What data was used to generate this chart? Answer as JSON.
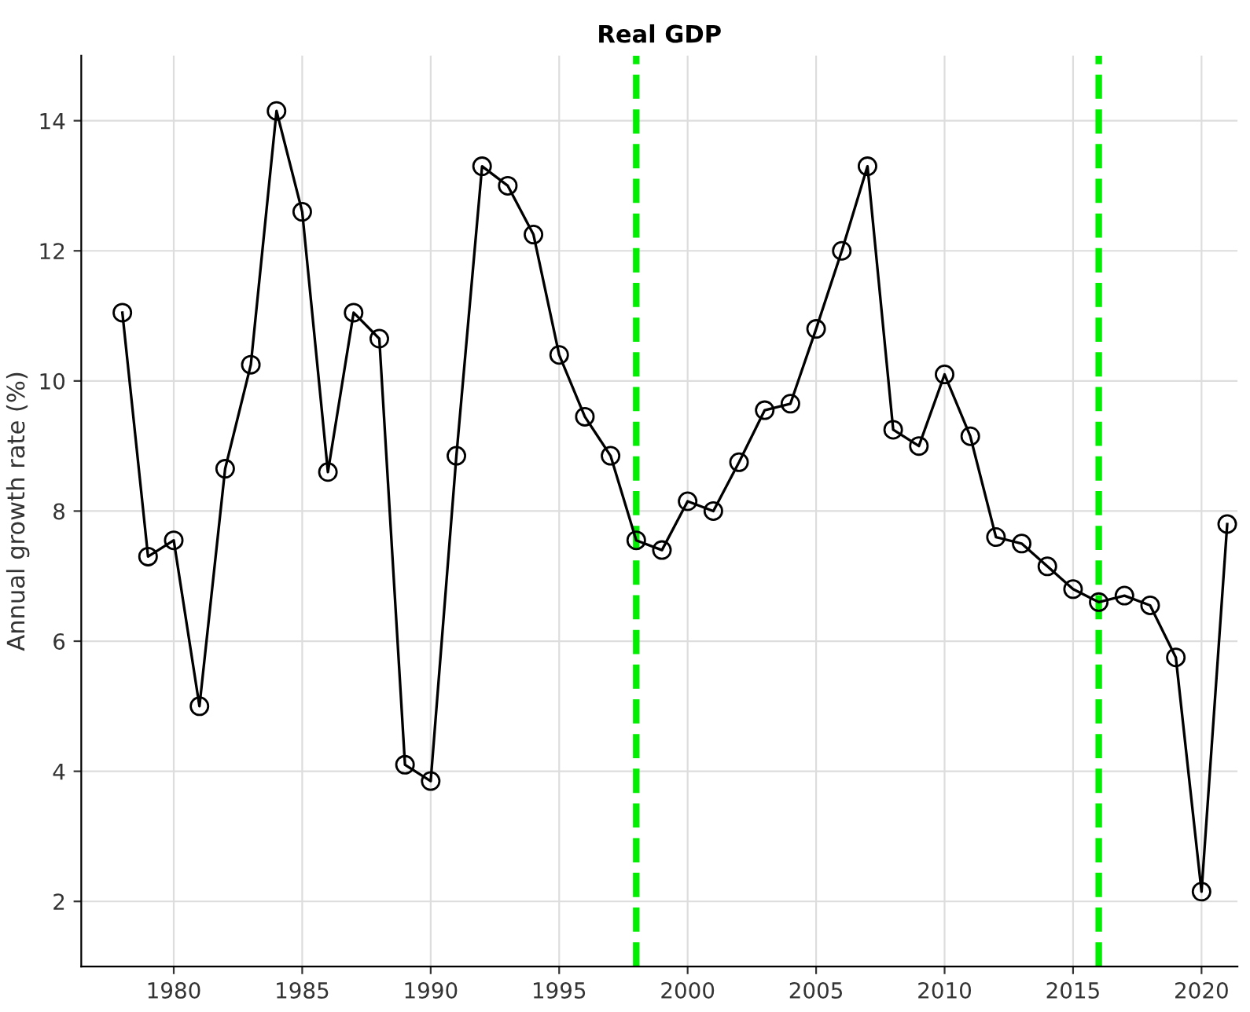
{
  "chart_data": {
    "type": "line",
    "title": "Real GDP",
    "ylabel": "Annual growth rate (%)",
    "x": [
      1978,
      1979,
      1980,
      1981,
      1982,
      1983,
      1984,
      1985,
      1986,
      1987,
      1988,
      1989,
      1990,
      1991,
      1992,
      1993,
      1994,
      1995,
      1996,
      1997,
      1998,
      1999,
      2000,
      2001,
      2002,
      2003,
      2004,
      2005,
      2006,
      2007,
      2008,
      2009,
      2010,
      2011,
      2012,
      2013,
      2014,
      2015,
      2016,
      2017,
      2018,
      2019,
      2020,
      2021
    ],
    "series": [
      {
        "color": "#000000",
        "values": [
          11.05,
          7.3,
          7.55,
          5.0,
          8.65,
          10.25,
          14.15,
          12.6,
          8.6,
          11.05,
          10.65,
          4.1,
          3.85,
          8.85,
          13.3,
          13.0,
          12.25,
          10.4,
          9.45,
          8.85,
          7.55,
          7.4,
          8.15,
          8.0,
          8.75,
          9.55,
          9.65,
          10.8,
          12.0,
          13.3,
          9.25,
          9.0,
          10.1,
          9.15,
          7.6,
          7.5,
          7.15,
          6.8,
          6.6,
          6.7,
          6.55,
          5.75,
          2.15,
          7.8
        ]
      }
    ],
    "xlim": [
      1976.4,
      2021.4
    ],
    "xticks": [
      1980,
      1985,
      1990,
      1995,
      2000,
      2005,
      2010,
      2015,
      2020
    ],
    "ylim": [
      1,
      15
    ],
    "yticks": [
      2,
      4,
      6,
      8,
      10,
      12,
      14
    ],
    "grid": true,
    "marker": "circle",
    "line_style": "solid",
    "legend": false,
    "ref_lines": [
      {
        "axis": "x",
        "value": 1998,
        "color": "#00ee00",
        "line_style": "dashed"
      },
      {
        "axis": "x",
        "value": 2016,
        "color": "#00ee00",
        "line_style": "dashed"
      }
    ]
  }
}
